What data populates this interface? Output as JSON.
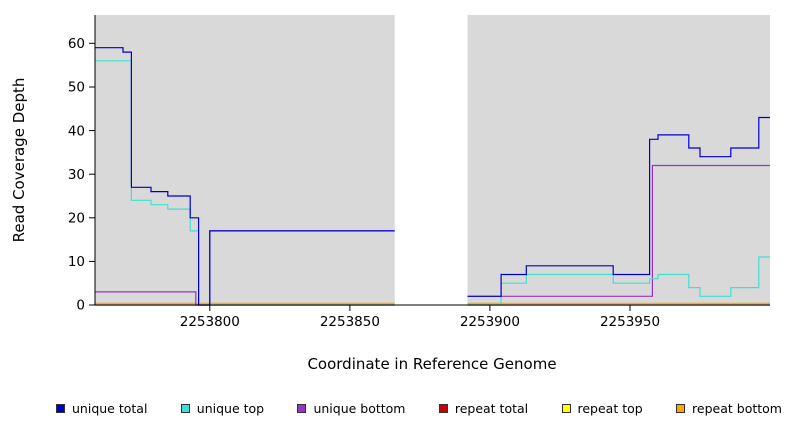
{
  "chart_data": {
    "type": "line",
    "step": true,
    "title": "",
    "xlabel": "Coordinate in Reference Genome",
    "ylabel": "Read Coverage Depth",
    "x_range": [
      2253759,
      2254000
    ],
    "y_range": [
      0,
      66.5
    ],
    "x_ticks": [
      2253800,
      2253850,
      2253900,
      2253950
    ],
    "y_ticks": [
      0,
      10,
      20,
      30,
      40,
      50,
      60
    ],
    "grid": false,
    "legend_position": "bottom",
    "plot_background": "#D9D9D9",
    "masked_region": {
      "x_start": 2253866,
      "x_end": 2253892,
      "color": "#FFFFFF"
    },
    "series": [
      {
        "name": "unique total",
        "color": "#0000CD",
        "segments": [
          [
            [
              2253759,
              59
            ],
            [
              2253769,
              58
            ],
            [
              2253772,
              27
            ],
            [
              2253779,
              26
            ],
            [
              2253785,
              25
            ],
            [
              2253793,
              20
            ],
            [
              2253796,
              0
            ],
            [
              2253800,
              17
            ],
            [
              2253866,
              17
            ]
          ],
          [
            [
              2253892,
              2
            ],
            [
              2253904,
              7
            ],
            [
              2253913,
              9
            ],
            [
              2253944,
              7
            ],
            [
              2253957,
              38
            ],
            [
              2253960,
              39
            ],
            [
              2253971,
              36
            ],
            [
              2253975,
              34
            ],
            [
              2253986,
              36
            ],
            [
              2253996,
              43
            ],
            [
              2254000,
              43
            ]
          ]
        ]
      },
      {
        "name": "unique top",
        "color": "#40E0D0",
        "segments": [
          [
            [
              2253759,
              56
            ],
            [
              2253772,
              24
            ],
            [
              2253779,
              23
            ],
            [
              2253785,
              22
            ],
            [
              2253793,
              17
            ],
            [
              2253796,
              0
            ],
            [
              2253866,
              0
            ]
          ],
          [
            [
              2253892,
              0
            ],
            [
              2253904,
              5
            ],
            [
              2253913,
              7
            ],
            [
              2253944,
              5
            ],
            [
              2253957,
              6
            ],
            [
              2253960,
              7
            ],
            [
              2253971,
              4
            ],
            [
              2253975,
              2
            ],
            [
              2253986,
              4
            ],
            [
              2253996,
              11
            ],
            [
              2254000,
              11
            ]
          ]
        ]
      },
      {
        "name": "unique bottom",
        "color": "#9932CC",
        "segments": [
          [
            [
              2253759,
              3
            ],
            [
              2253795,
              0
            ],
            [
              2253800,
              17
            ],
            [
              2253866,
              17
            ]
          ],
          [
            [
              2253892,
              2
            ],
            [
              2253958,
              32
            ],
            [
              2254000,
              32
            ]
          ]
        ]
      },
      {
        "name": "repeat total",
        "color": "#CC0000",
        "segments": [
          [
            [
              2253759,
              0
            ],
            [
              2253866,
              0
            ]
          ],
          [
            [
              2253892,
              0
            ],
            [
              2254000,
              0
            ]
          ]
        ]
      },
      {
        "name": "repeat top",
        "color": "#FFFF00",
        "segments": [
          [
            [
              2253759,
              0
            ],
            [
              2253866,
              0
            ]
          ],
          [
            [
              2253892,
              0
            ],
            [
              2254000,
              0
            ]
          ]
        ]
      },
      {
        "name": "repeat bottom",
        "color": "#FFA500",
        "segments": [
          [
            [
              2253759,
              0.4
            ],
            [
              2253866,
              0.4
            ]
          ],
          [
            [
              2253892,
              0.4
            ],
            [
              2254000,
              0.4
            ]
          ]
        ]
      }
    ]
  }
}
